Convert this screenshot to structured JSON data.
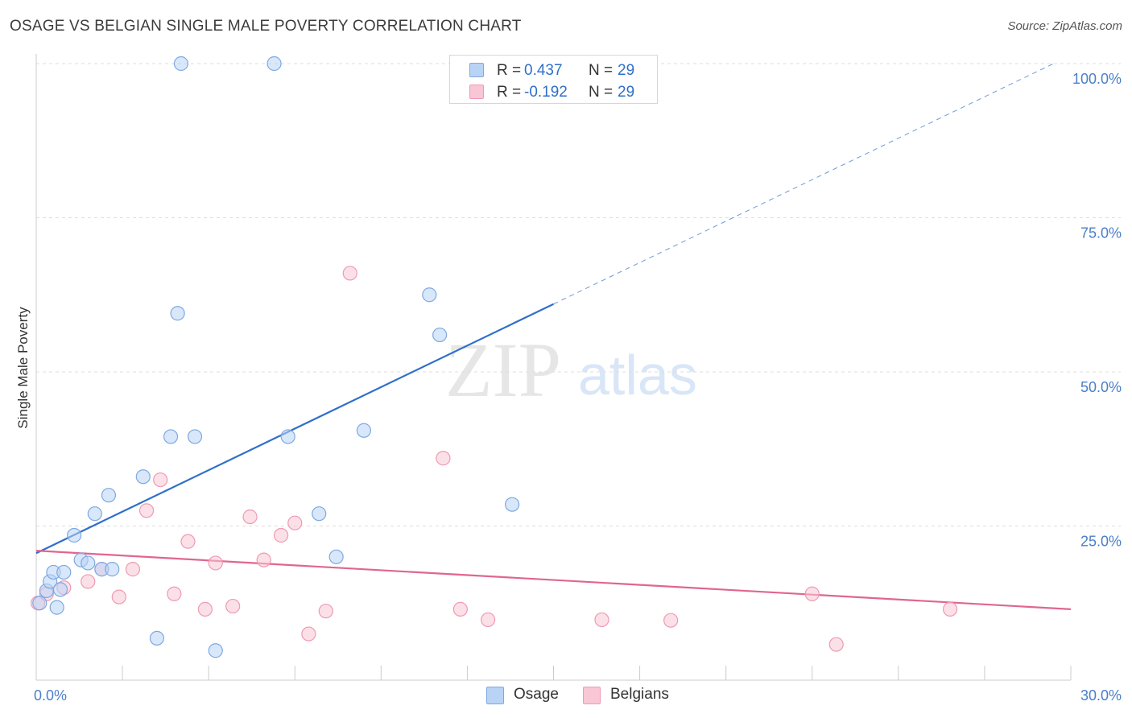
{
  "header": {
    "title": "OSAGE VS BELGIAN SINGLE MALE POVERTY CORRELATION CHART",
    "source": "Source: ZipAtlas.com"
  },
  "watermark": {
    "zip": "ZIP",
    "atlas": "atlas"
  },
  "legend": {
    "osage": {
      "r_label": "R =",
      "r_value": "0.437",
      "n_label": "N =",
      "n_value": "29"
    },
    "belgians": {
      "r_label": "R =",
      "r_value": "-0.192",
      "n_label": "N =",
      "n_value": "29"
    }
  },
  "colors": {
    "osage_fill": "#b8d3f5",
    "osage_stroke": "#7ea9e0",
    "osage_line": "#2f6fca",
    "belgians_fill": "#f9c6d5",
    "belgians_stroke": "#ee9ab3",
    "belgians_line": "#e0668f",
    "tick_color": "#4a7fc9",
    "grid": "#dddddd"
  },
  "chart_data": {
    "type": "scatter",
    "title": "OSAGE VS BELGIAN SINGLE MALE POVERTY CORRELATION CHART",
    "ylabel": "Single Male Poverty",
    "xlabel": "",
    "xlim": [
      0,
      30
    ],
    "ylim": [
      0,
      100
    ],
    "x_ticks": [
      {
        "value": 0,
        "label": "0.0%"
      },
      {
        "value": 30,
        "label": "30.0%"
      }
    ],
    "y_ticks": [
      {
        "value": 25,
        "label": "25.0%"
      },
      {
        "value": 50,
        "label": "50.0%"
      },
      {
        "value": 75,
        "label": "75.0%"
      },
      {
        "value": 100,
        "label": "100.0%"
      }
    ],
    "grid": true,
    "legend_position": "top-center",
    "series": [
      {
        "name": "Osage",
        "points": [
          [
            0.1,
            12.5
          ],
          [
            0.3,
            14.5
          ],
          [
            0.4,
            16
          ],
          [
            0.5,
            17.5
          ],
          [
            0.6,
            11.8
          ],
          [
            0.7,
            14.7
          ],
          [
            0.8,
            17.5
          ],
          [
            1.1,
            23.5
          ],
          [
            1.3,
            19.5
          ],
          [
            1.5,
            19
          ],
          [
            1.7,
            27
          ],
          [
            1.9,
            18
          ],
          [
            2.1,
            30
          ],
          [
            2.2,
            18
          ],
          [
            3.1,
            33
          ],
          [
            3.5,
            6.8
          ],
          [
            3.9,
            39.5
          ],
          [
            4.1,
            59.5
          ],
          [
            4.2,
            100
          ],
          [
            4.6,
            39.5
          ],
          [
            5.2,
            4.8
          ],
          [
            6.9,
            100
          ],
          [
            7.3,
            39.5
          ],
          [
            8.2,
            27
          ],
          [
            8.7,
            20
          ],
          [
            9.5,
            40.5
          ],
          [
            11.4,
            62.5
          ],
          [
            11.7,
            56
          ],
          [
            13.8,
            28.5
          ]
        ],
        "trend": {
          "x_start": 0,
          "y_start": 20.6,
          "x_solid_end": 15,
          "y_solid_end": 61,
          "x_dash_end": 29.5,
          "y_dash_end": 100
        }
      },
      {
        "name": "Belgians",
        "points": [
          [
            0.05,
            12.5
          ],
          [
            0.3,
            14
          ],
          [
            0.8,
            15
          ],
          [
            1.5,
            16
          ],
          [
            1.9,
            18
          ],
          [
            2.4,
            13.5
          ],
          [
            2.8,
            18
          ],
          [
            3.2,
            27.5
          ],
          [
            3.6,
            32.5
          ],
          [
            4.0,
            14
          ],
          [
            4.4,
            22.5
          ],
          [
            4.9,
            11.5
          ],
          [
            5.2,
            19
          ],
          [
            5.7,
            12
          ],
          [
            6.2,
            26.5
          ],
          [
            6.6,
            19.5
          ],
          [
            7.1,
            23.5
          ],
          [
            7.5,
            25.5
          ],
          [
            7.9,
            7.5
          ],
          [
            8.4,
            11.2
          ],
          [
            9.1,
            66
          ],
          [
            11.8,
            36
          ],
          [
            12.3,
            11.5
          ],
          [
            13.1,
            9.8
          ],
          [
            16.4,
            9.8
          ],
          [
            18.4,
            9.7
          ],
          [
            22.5,
            14
          ],
          [
            23.2,
            5.8
          ],
          [
            26.5,
            11.5
          ]
        ],
        "trend": {
          "x_start": 0,
          "y_start": 21,
          "x_end": 30,
          "y_end": 11.5
        }
      }
    ]
  }
}
